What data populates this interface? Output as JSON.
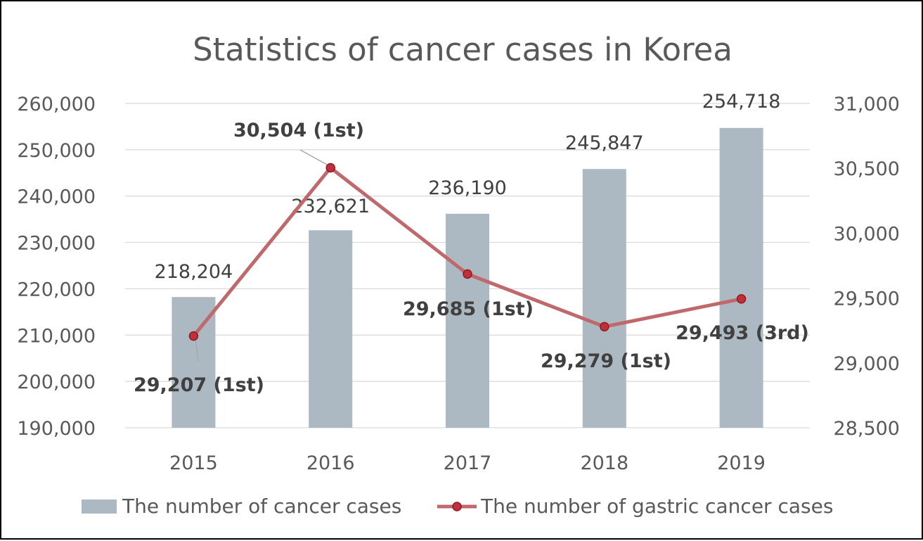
{
  "chart_data": {
    "type": "bar",
    "title": "Statistics of cancer cases in Korea",
    "categories": [
      "2015",
      "2016",
      "2017",
      "2018",
      "2019"
    ],
    "series": [
      {
        "name": "The number of cancer cases",
        "type": "bar",
        "axis": "left",
        "color": "#adb9c2",
        "values": [
          218204,
          232621,
          236190,
          245847,
          254718
        ],
        "labels": [
          "218,204",
          "232,621",
          "236,190",
          "245,847",
          "254,718"
        ]
      },
      {
        "name": "The number of gastric cancer cases",
        "type": "line",
        "axis": "right",
        "color": "#c0696c",
        "marker_color": "#c0303a",
        "values": [
          29207,
          30504,
          29685,
          29279,
          29493
        ],
        "labels": [
          "29,207 (1st)",
          "30,504 (1st)",
          "29,685 (1st)",
          "29,279 (1st)",
          "29,493 (3rd)"
        ]
      }
    ],
    "y_left": {
      "min": 190000,
      "max": 260000,
      "step": 10000,
      "ticks": [
        "190,000",
        "200,000",
        "210,000",
        "220,000",
        "230,000",
        "240,000",
        "250,000",
        "260,000"
      ]
    },
    "y_right": {
      "min": 28500,
      "max": 31000,
      "step": 500,
      "ticks": [
        "28,500",
        "29,000",
        "29,500",
        "30,000",
        "30,500",
        "31,000"
      ]
    },
    "grid": true,
    "legend_position": "bottom"
  }
}
